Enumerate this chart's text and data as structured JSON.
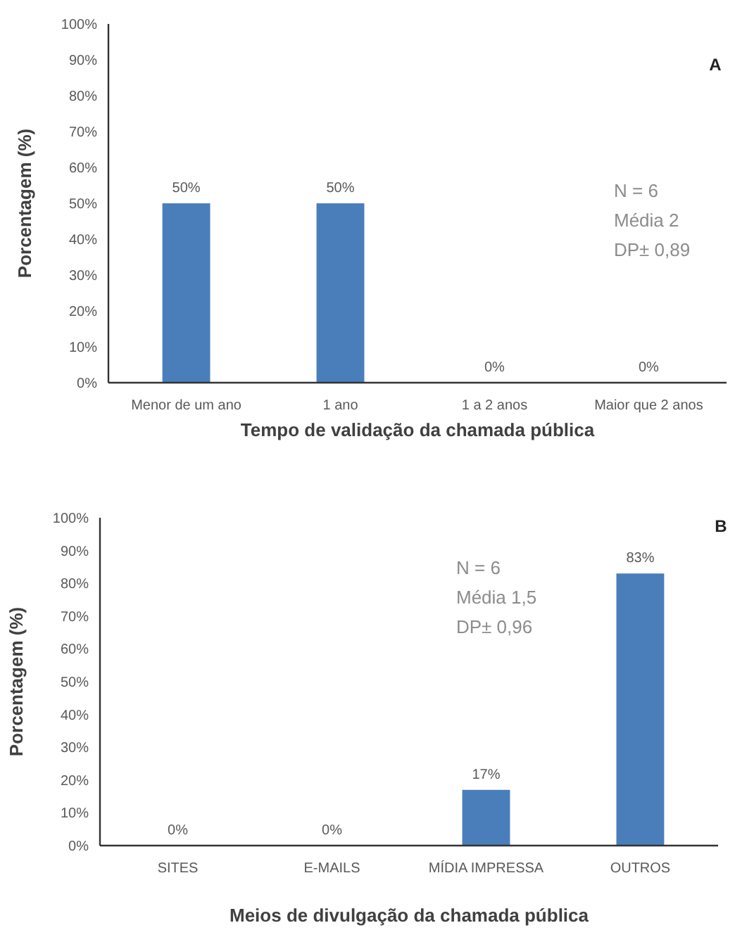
{
  "chart_data": [
    {
      "type": "bar",
      "categories": [
        "Menor de um ano",
        "1 ano",
        "1 a 2 anos",
        "Maior que 2 anos"
      ],
      "values": [
        50,
        50,
        0,
        0
      ],
      "value_labels": [
        "50%",
        "50%",
        "0%",
        "0%"
      ],
      "color": "#4a7ebb",
      "xlabel": "Tempo de validação da chamada pública",
      "ylabel": "Porcentagem (%)",
      "ylim": [
        0,
        100
      ],
      "yticks": [
        {
          "value": 0,
          "label": "0%"
        },
        {
          "value": 10,
          "label": "10%"
        },
        {
          "value": 20,
          "label": "20%"
        },
        {
          "value": 30,
          "label": "30%"
        },
        {
          "value": 40,
          "label": "40%"
        },
        {
          "value": 50,
          "label": "50%"
        },
        {
          "value": 60,
          "label": "60%"
        },
        {
          "value": 70,
          "label": "70%"
        },
        {
          "value": 80,
          "label": "80%"
        },
        {
          "value": 90,
          "label": "90%"
        },
        {
          "value": 100,
          "label": "100%"
        }
      ],
      "grid": false,
      "annotations": [
        "A",
        "N = 6",
        "Média 2",
        "DP±  0,89"
      ]
    },
    {
      "type": "bar",
      "categories": [
        "SITES",
        "E-MAILS",
        "MÍDIA IMPRESSA",
        "OUTROS"
      ],
      "values": [
        0,
        0,
        17,
        83
      ],
      "value_labels": [
        "0%",
        "0%",
        "17%",
        "83%"
      ],
      "color": "#4a7ebb",
      "xlabel": "Meios de divulgação da chamada pública",
      "ylabel": "Porcentagem (%)",
      "ylim": [
        0,
        100
      ],
      "yticks": [
        {
          "value": 0,
          "label": "0%"
        },
        {
          "value": 10,
          "label": "10%"
        },
        {
          "value": 20,
          "label": "20%"
        },
        {
          "value": 30,
          "label": "30%"
        },
        {
          "value": 40,
          "label": "40%"
        },
        {
          "value": 50,
          "label": "50%"
        },
        {
          "value": 60,
          "label": "60%"
        },
        {
          "value": 70,
          "label": "70%"
        },
        {
          "value": 80,
          "label": "80%"
        },
        {
          "value": 90,
          "label": "90%"
        },
        {
          "value": 100,
          "label": "100%"
        }
      ],
      "grid": false,
      "annotations": [
        "B",
        "N = 6",
        "Média 1,5",
        "DP±  0,96"
      ]
    }
  ]
}
